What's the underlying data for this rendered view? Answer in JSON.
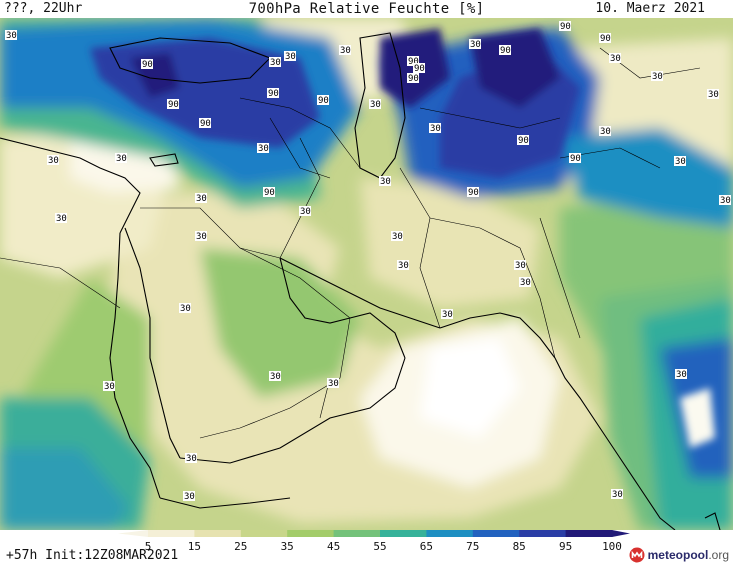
{
  "header": {
    "left": "???, 22Uhr",
    "title": "700hPa Relative Feuchte [%]",
    "date": "10. Maerz 2021"
  },
  "footer": {
    "run": "+57h Init:12Z08MAR2021",
    "brand_name": "meteopool",
    "brand_tld": ".org"
  },
  "legend": {
    "labels": [
      "5",
      "15",
      "25",
      "35",
      "45",
      "55",
      "65",
      "75",
      "85",
      "95",
      "100"
    ],
    "colors": [
      "#ffffff",
      "#f4efd6",
      "#e6e2b0",
      "#c8d68a",
      "#a3cc6a",
      "#74c27a",
      "#37b29a",
      "#1e8fc2",
      "#2262bf",
      "#2b3ea6",
      "#221a78"
    ]
  },
  "map": {
    "contour_labels_30": [
      "30",
      "30",
      "30",
      "30",
      "30",
      "30",
      "30",
      "30",
      "30",
      "30",
      "30",
      "30",
      "30",
      "30",
      "30",
      "30",
      "30",
      "30",
      "30",
      "30",
      "30",
      "30",
      "30",
      "30",
      "30",
      "30",
      "30",
      "30",
      "30",
      "30",
      "30",
      "30",
      "30",
      "30"
    ],
    "contour_labels_90": [
      "90",
      "90",
      "90",
      "90",
      "90",
      "90",
      "90",
      "90",
      "90",
      "90",
      "90",
      "90",
      "90",
      "90",
      "90"
    ]
  }
}
